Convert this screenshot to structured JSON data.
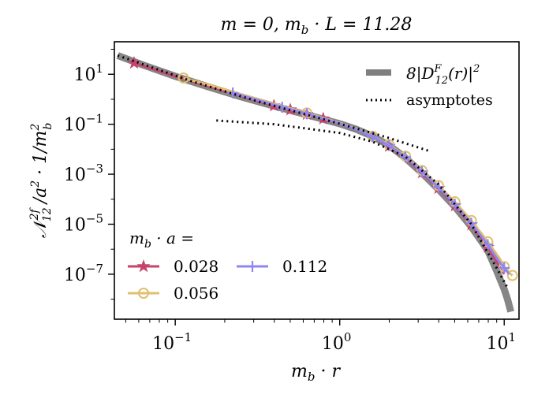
{
  "chart_data": {
    "type": "line",
    "title": "m = 0,  m_b · L = 11.28",
    "xlabel": "m_b · r",
    "ylabel": "N_12^{2f} / a² · 1 / m_b²",
    "xscale": "log",
    "yscale": "log",
    "xlim_log10": [
      -1.37,
      1.09
    ],
    "ylim_log10": [
      -8.8,
      2.3
    ],
    "x_ticks": [
      {
        "base": "10",
        "exp": "−1",
        "log10": -1
      },
      {
        "base": "10",
        "exp": "0",
        "log10": 0
      },
      {
        "base": "10",
        "exp": "1",
        "log10": 1
      }
    ],
    "y_ticks": [
      {
        "base": "10",
        "exp": "1",
        "log10": 1
      },
      {
        "base": "10",
        "exp": "−1",
        "log10": -1
      },
      {
        "base": "10",
        "exp": "−3",
        "log10": -3
      },
      {
        "base": "10",
        "exp": "−5",
        "log10": -5
      },
      {
        "base": "10",
        "exp": "−7",
        "log10": -7
      }
    ],
    "reference": {
      "name": "8|D_12^F(r)|²",
      "color": "#7f7f7f",
      "points_log10": [
        [
          -1.35,
          1.75
        ],
        [
          -1.2,
          1.38
        ],
        [
          -1.0,
          0.92
        ],
        [
          -0.8,
          0.5
        ],
        [
          -0.6,
          0.1
        ],
        [
          -0.4,
          -0.27
        ],
        [
          -0.2,
          -0.62
        ],
        [
          0.0,
          -0.98
        ],
        [
          0.1,
          -1.2
        ],
        [
          0.2,
          -1.48
        ],
        [
          0.3,
          -1.85
        ],
        [
          0.4,
          -2.35
        ],
        [
          0.5,
          -2.95
        ],
        [
          0.6,
          -3.6
        ],
        [
          0.7,
          -4.3
        ],
        [
          0.8,
          -5.1
        ],
        [
          0.9,
          -6.05
        ],
        [
          0.95,
          -6.8
        ],
        [
          1.0,
          -7.6
        ],
        [
          1.02,
          -8.0
        ],
        [
          1.04,
          -8.5
        ]
      ]
    },
    "asymptotes": {
      "name": "asymptotes",
      "color": "#000000",
      "lines_log10": [
        [
          [
            -1.35,
            1.75
          ],
          [
            -0.9,
            0.72
          ],
          [
            -0.5,
            -0.08
          ],
          [
            0.0,
            -0.98
          ],
          [
            0.3,
            -1.55
          ],
          [
            0.54,
            -2.06
          ]
        ],
        [
          [
            -0.75,
            -0.85
          ],
          [
            -0.4,
            -1.0
          ],
          [
            0.0,
            -1.35
          ],
          [
            0.2,
            -1.7
          ],
          [
            0.4,
            -2.3
          ],
          [
            0.6,
            -3.4
          ],
          [
            0.8,
            -5.0
          ],
          [
            0.95,
            -6.7
          ],
          [
            1.0,
            -7.3
          ],
          [
            1.02,
            -7.55
          ]
        ]
      ]
    },
    "legend_title": "m_b · a =",
    "series": [
      {
        "name": "0.028",
        "color": "#c8436b",
        "marker": "star",
        "points_log10": [
          [
            -1.25,
            1.45
          ],
          [
            -1.0,
            0.92
          ],
          [
            -0.8,
            0.52
          ],
          [
            -0.6,
            0.12
          ],
          [
            -0.4,
            -0.26
          ],
          [
            -0.2,
            -0.6
          ],
          [
            0.0,
            -0.98
          ],
          [
            0.1,
            -1.2
          ],
          [
            0.2,
            -1.5
          ],
          [
            0.3,
            -1.88
          ],
          [
            0.4,
            -2.36
          ],
          [
            0.5,
            -2.94
          ],
          [
            0.6,
            -3.56
          ],
          [
            0.7,
            -4.26
          ],
          [
            0.8,
            -5.02
          ],
          [
            0.9,
            -5.92
          ],
          [
            1.0,
            -7.0
          ]
        ],
        "marker_points_log10": [
          [
            -1.25,
            1.45
          ],
          [
            -0.4,
            -0.26
          ],
          [
            -0.3,
            -0.42
          ],
          [
            -0.2,
            -0.6
          ],
          [
            -0.1,
            -0.78
          ],
          [
            0.3,
            -1.88
          ],
          [
            0.5,
            -2.94
          ],
          [
            0.6,
            -3.56
          ],
          [
            0.7,
            -4.26
          ],
          [
            0.8,
            -5.02
          ],
          [
            0.9,
            -5.92
          ]
        ]
      },
      {
        "name": "0.056",
        "color": "#e0c070",
        "marker": "circle",
        "points_log10": [
          [
            -0.95,
            0.85
          ],
          [
            -0.8,
            0.58
          ],
          [
            -0.6,
            0.2
          ],
          [
            -0.4,
            -0.18
          ],
          [
            -0.2,
            -0.55
          ],
          [
            0.0,
            -0.95
          ],
          [
            0.1,
            -1.18
          ],
          [
            0.2,
            -1.48
          ],
          [
            0.3,
            -1.82
          ],
          [
            0.4,
            -2.28
          ],
          [
            0.5,
            -2.85
          ],
          [
            0.6,
            -3.45
          ],
          [
            0.7,
            -4.1
          ],
          [
            0.8,
            -4.85
          ],
          [
            0.9,
            -5.7
          ],
          [
            0.97,
            -6.35
          ],
          [
            1.0,
            -6.7
          ],
          [
            1.03,
            -6.95
          ],
          [
            1.05,
            -7.05
          ]
        ],
        "marker_points_log10": [
          [
            -0.95,
            0.85
          ],
          [
            -0.2,
            -0.55
          ],
          [
            0.2,
            -1.48
          ],
          [
            0.3,
            -1.82
          ],
          [
            0.4,
            -2.28
          ],
          [
            0.5,
            -2.85
          ],
          [
            0.6,
            -3.45
          ],
          [
            0.7,
            -4.1
          ],
          [
            0.8,
            -4.85
          ],
          [
            0.9,
            -5.7
          ],
          [
            1.0,
            -6.7
          ],
          [
            1.05,
            -7.05
          ]
        ]
      },
      {
        "name": "0.112",
        "color": "#8f87f0",
        "marker": "plus",
        "points_log10": [
          [
            -0.65,
            0.25
          ],
          [
            -0.4,
            -0.22
          ],
          [
            -0.2,
            -0.58
          ],
          [
            0.0,
            -0.97
          ],
          [
            0.1,
            -1.2
          ],
          [
            0.2,
            -1.5
          ],
          [
            0.3,
            -1.85
          ],
          [
            0.4,
            -2.32
          ],
          [
            0.5,
            -2.9
          ],
          [
            0.6,
            -3.52
          ],
          [
            0.7,
            -4.2
          ],
          [
            0.8,
            -4.96
          ],
          [
            0.9,
            -5.82
          ],
          [
            0.97,
            -6.5
          ],
          [
            1.03,
            -7.0
          ]
        ],
        "marker_points_log10": [
          [
            -0.65,
            0.25
          ],
          [
            -0.35,
            -0.32
          ],
          [
            -0.2,
            -0.58
          ],
          [
            0.2,
            -1.5
          ],
          [
            0.3,
            -1.85
          ],
          [
            0.4,
            -2.32
          ],
          [
            0.5,
            -2.9
          ],
          [
            0.6,
            -3.52
          ],
          [
            0.7,
            -4.2
          ],
          [
            0.8,
            -4.96
          ],
          [
            0.9,
            -5.82
          ],
          [
            1.0,
            -6.75
          ]
        ]
      }
    ],
    "legend_top_right": [
      "reference",
      "asymptotes"
    ],
    "legend_bottom_left_position": "lower-left",
    "grid": false
  }
}
